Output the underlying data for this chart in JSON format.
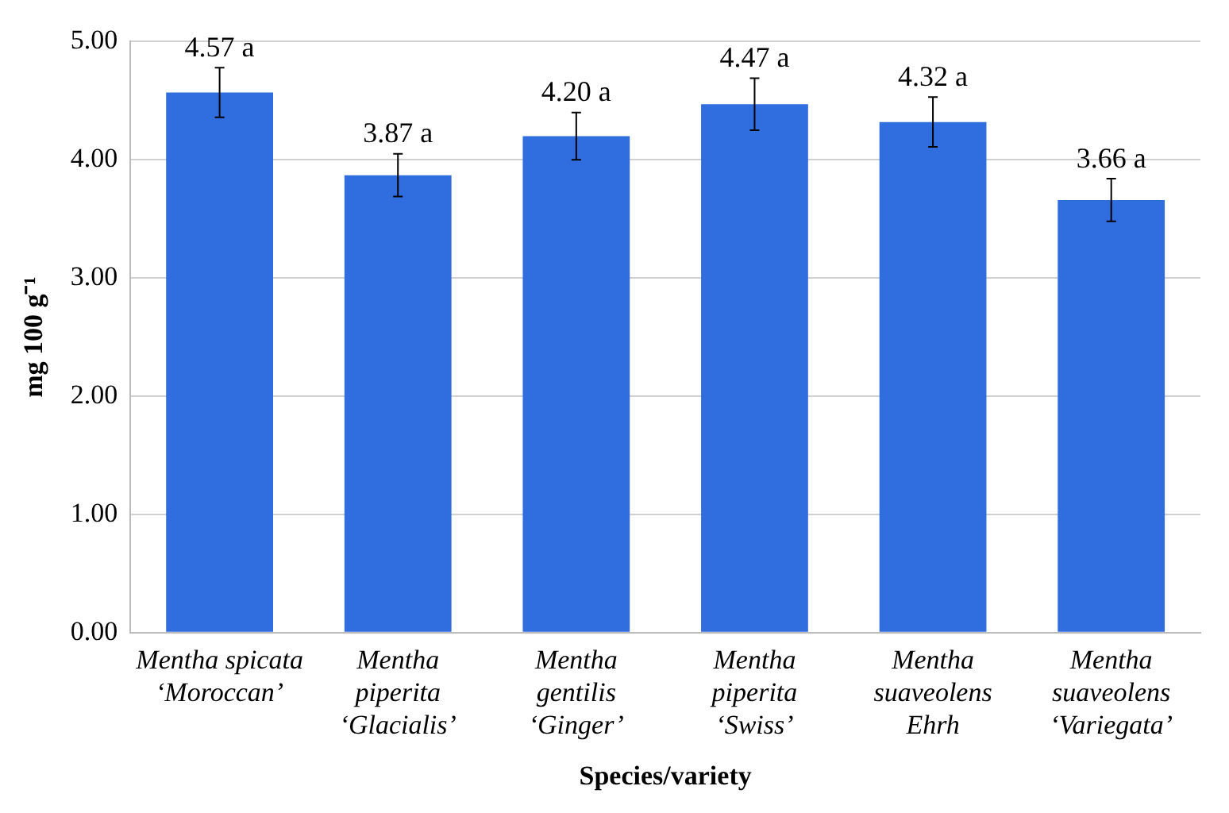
{
  "chart_data": {
    "type": "bar",
    "xlabel": "Species/variety",
    "ylabel": "mg 100 g⁻¹",
    "categories": [
      "Mentha spicata\n‘Moroccan’",
      "Mentha\npiperita\n‘Glacialis’",
      "Mentha\ngentilis\n‘Ginger’",
      "Mentha\npiperita\n‘Swiss’",
      "Mentha\nsuaveolens\nEhrh",
      "Mentha\nsuaveolens\n‘Variegata’"
    ],
    "values": [
      4.57,
      3.87,
      4.2,
      4.47,
      4.32,
      3.66
    ],
    "errors": [
      0.21,
      0.18,
      0.2,
      0.22,
      0.21,
      0.18
    ],
    "value_labels": [
      "4.57 a",
      "3.87 a",
      "4.20 a",
      "4.47 a",
      "4.32 a",
      "3.66 a"
    ],
    "color": "#306ddf",
    "ylim": [
      0,
      5
    ],
    "yticks": [
      {
        "value": 0,
        "label": "0.00"
      },
      {
        "value": 1,
        "label": "1.00"
      },
      {
        "value": 2,
        "label": "2.00"
      },
      {
        "value": 3,
        "label": "3.00"
      },
      {
        "value": 4,
        "label": "4.00"
      },
      {
        "value": 5,
        "label": "5.00"
      }
    ],
    "grid": "y"
  }
}
